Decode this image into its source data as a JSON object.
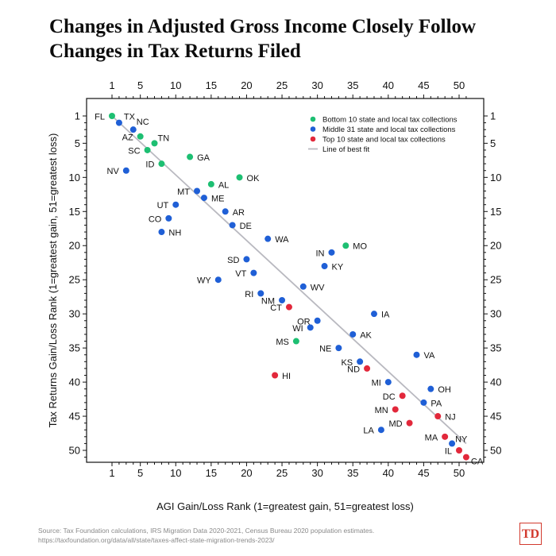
{
  "title": {
    "line1": "Changes in Adjusted Gross Income Closely Follow",
    "line2": "Changes in Tax Returns Filed"
  },
  "source": {
    "line1": "Source: Tax Foundation calculations, IRS Migration Data 2020-2021, Census Bureau 2020 population estimates.",
    "line2": "https://taxfoundation.org/data/all/state/taxes-affect-state-migration-trends-2023/"
  },
  "logo": "TD",
  "colors": {
    "bottom10": "#1dbf72",
    "middle31": "#1f5fd6",
    "top10": "#e2283b",
    "fit": "#b9b9c0"
  },
  "chart_data": {
    "type": "scatter",
    "xlabel": "AGI Gain/Loss Rank (1=greatest gain, 51=greatest loss)",
    "ylabel": "Tax Returns Gain/Loss Rank (1=greatest gain, 51=greatest loss)",
    "xlim": [
      0,
      52
    ],
    "ylim": [
      0,
      52
    ],
    "ticks": [
      1,
      5,
      10,
      15,
      20,
      25,
      30,
      35,
      40,
      45,
      50
    ],
    "y_inverted": true,
    "grid": false,
    "legend_position": "top-right",
    "legend": [
      {
        "group": "bottom10",
        "label": "Bottom 10 state and local tax collections"
      },
      {
        "group": "middle31",
        "label": "Middle 31 state and local tax collections"
      },
      {
        "group": "top10",
        "label": "Top 10 state and local tax collections"
      },
      {
        "group": "fit",
        "label": "Line of best fit"
      }
    ],
    "fit_line": {
      "from": [
        1,
        1
      ],
      "to": [
        51,
        49
      ]
    },
    "points": [
      {
        "state": "FL",
        "x": 1,
        "y": 1,
        "group": "bottom10"
      },
      {
        "state": "TX",
        "x": 2,
        "y": 2,
        "group": "middle31"
      },
      {
        "state": "NC",
        "x": 4,
        "y": 3,
        "group": "middle31"
      },
      {
        "state": "AZ",
        "x": 5,
        "y": 4,
        "group": "bottom10"
      },
      {
        "state": "TN",
        "x": 7,
        "y": 5,
        "group": "bottom10"
      },
      {
        "state": "SC",
        "x": 6,
        "y": 6,
        "group": "bottom10"
      },
      {
        "state": "GA",
        "x": 12,
        "y": 7,
        "group": "bottom10"
      },
      {
        "state": "ID",
        "x": 8,
        "y": 8,
        "group": "bottom10"
      },
      {
        "state": "NV",
        "x": 3,
        "y": 9,
        "group": "middle31"
      },
      {
        "state": "OK",
        "x": 19,
        "y": 10,
        "group": "bottom10"
      },
      {
        "state": "MT",
        "x": 13,
        "y": 12,
        "group": "middle31"
      },
      {
        "state": "AL",
        "x": 15,
        "y": 11,
        "group": "bottom10"
      },
      {
        "state": "ME",
        "x": 14,
        "y": 13,
        "group": "middle31"
      },
      {
        "state": "UT",
        "x": 10,
        "y": 14,
        "group": "middle31"
      },
      {
        "state": "AR",
        "x": 17,
        "y": 15,
        "group": "middle31"
      },
      {
        "state": "CO",
        "x": 9,
        "y": 16,
        "group": "middle31"
      },
      {
        "state": "DE",
        "x": 18,
        "y": 17,
        "group": "middle31"
      },
      {
        "state": "NH",
        "x": 8,
        "y": 18,
        "group": "middle31"
      },
      {
        "state": "WA",
        "x": 23,
        "y": 19,
        "group": "middle31"
      },
      {
        "state": "MO",
        "x": 34,
        "y": 20,
        "group": "bottom10"
      },
      {
        "state": "IN",
        "x": 32,
        "y": 21,
        "group": "middle31"
      },
      {
        "state": "SD",
        "x": 20,
        "y": 22,
        "group": "middle31"
      },
      {
        "state": "KY",
        "x": 31,
        "y": 23,
        "group": "middle31"
      },
      {
        "state": "VT",
        "x": 21,
        "y": 24,
        "group": "middle31"
      },
      {
        "state": "WY",
        "x": 16,
        "y": 25,
        "group": "middle31"
      },
      {
        "state": "WV",
        "x": 28,
        "y": 26,
        "group": "middle31"
      },
      {
        "state": "RI",
        "x": 22,
        "y": 27,
        "group": "middle31"
      },
      {
        "state": "NM",
        "x": 25,
        "y": 28,
        "group": "middle31"
      },
      {
        "state": "CT",
        "x": 26,
        "y": 29,
        "group": "top10"
      },
      {
        "state": "IA",
        "x": 38,
        "y": 30,
        "group": "middle31"
      },
      {
        "state": "OR",
        "x": 30,
        "y": 31,
        "group": "middle31"
      },
      {
        "state": "WI",
        "x": 29,
        "y": 32,
        "group": "middle31"
      },
      {
        "state": "AK",
        "x": 35,
        "y": 33,
        "group": "middle31"
      },
      {
        "state": "MS",
        "x": 27,
        "y": 34,
        "group": "bottom10"
      },
      {
        "state": "NE",
        "x": 33,
        "y": 35,
        "group": "middle31"
      },
      {
        "state": "VA",
        "x": 44,
        "y": 36,
        "group": "middle31"
      },
      {
        "state": "KS",
        "x": 36,
        "y": 37,
        "group": "middle31"
      },
      {
        "state": "ND",
        "x": 37,
        "y": 38,
        "group": "top10"
      },
      {
        "state": "HI",
        "x": 24,
        "y": 39,
        "group": "top10"
      },
      {
        "state": "MI",
        "x": 40,
        "y": 40,
        "group": "middle31"
      },
      {
        "state": "OH",
        "x": 46,
        "y": 41,
        "group": "middle31"
      },
      {
        "state": "DC",
        "x": 42,
        "y": 42,
        "group": "top10"
      },
      {
        "state": "PA",
        "x": 45,
        "y": 43,
        "group": "middle31"
      },
      {
        "state": "MN",
        "x": 41,
        "y": 44,
        "group": "top10"
      },
      {
        "state": "NJ",
        "x": 47,
        "y": 45,
        "group": "top10"
      },
      {
        "state": "MD",
        "x": 43,
        "y": 46,
        "group": "top10"
      },
      {
        "state": "LA",
        "x": 39,
        "y": 47,
        "group": "middle31"
      },
      {
        "state": "MA",
        "x": 48,
        "y": 48,
        "group": "top10"
      },
      {
        "state": "NY",
        "x": 49,
        "y": 49,
        "group": "middle31"
      },
      {
        "state": "IL",
        "x": 50,
        "y": 50,
        "group": "top10"
      },
      {
        "state": "CA",
        "x": 51,
        "y": 51,
        "group": "top10"
      }
    ]
  }
}
